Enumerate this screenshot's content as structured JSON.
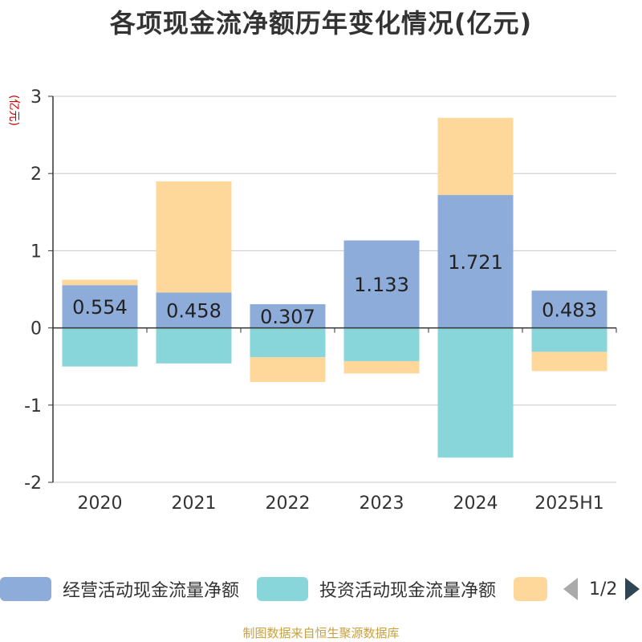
{
  "chart_data": {
    "type": "bar",
    "stacked": true,
    "title": "各项现金流净额历年变化情况(亿元)",
    "ylabel": "(亿元)",
    "ylim": [
      -2,
      3
    ],
    "yticks": [
      3,
      2,
      1,
      0,
      -1,
      -2
    ],
    "grid": true,
    "categories": [
      "2020",
      "2021",
      "2022",
      "2023",
      "2024",
      "2025H1"
    ],
    "series": [
      {
        "name": "经营活动现金流量净额",
        "color": "#8eacda",
        "values": [
          0.554,
          0.458,
          0.307,
          1.133,
          1.721,
          0.483
        ],
        "labels": [
          "0.554",
          "0.458",
          "0.307",
          "1.133",
          "1.721",
          "0.483"
        ]
      },
      {
        "name": "投资活动现金流量净额",
        "color": "#88d6d9",
        "values": [
          -0.5,
          -0.46,
          -0.38,
          -0.43,
          -1.68,
          -0.31
        ]
      },
      {
        "name": "",
        "color": "#fed89b",
        "values": [
          0.07,
          1.44,
          -0.32,
          -0.16,
          1.0,
          -0.25
        ]
      }
    ],
    "legend_position": "bottom"
  },
  "legend": {
    "page": "1/2"
  },
  "source": "制图数据来自恒生聚源数据库"
}
